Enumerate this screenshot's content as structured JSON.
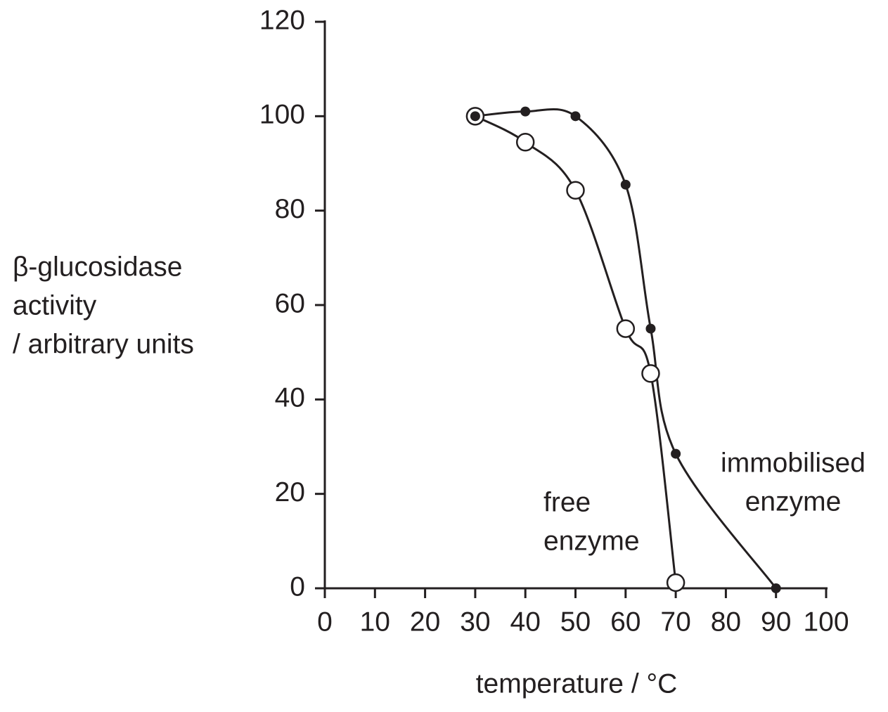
{
  "chart_data": {
    "type": "line",
    "xlabel": "temperature / °C",
    "ylabel": [
      "β-glucosidase",
      "activity",
      "/ arbitrary units"
    ],
    "xlim": [
      0,
      100
    ],
    "xticks": [
      0,
      10,
      20,
      30,
      40,
      50,
      60,
      70,
      80,
      90,
      100
    ],
    "ylim": [
      0,
      120
    ],
    "yticks": [
      0,
      20,
      40,
      60,
      80,
      100,
      120
    ],
    "series": [
      {
        "label": [
          "free",
          "enzyme"
        ],
        "marker": "open",
        "color": "#231f20",
        "x": [
          30,
          40,
          50,
          60,
          65,
          70
        ],
        "values": [
          100,
          94.5,
          84.3,
          55,
          45.5,
          1.2
        ]
      },
      {
        "label": [
          "immobilised",
          "enzyme"
        ],
        "marker": "filled",
        "color": "#231f20",
        "x": [
          30,
          40,
          50,
          60,
          65,
          70,
          90
        ],
        "values": [
          100,
          101,
          100,
          85.5,
          55,
          28.5,
          0
        ]
      }
    ]
  }
}
